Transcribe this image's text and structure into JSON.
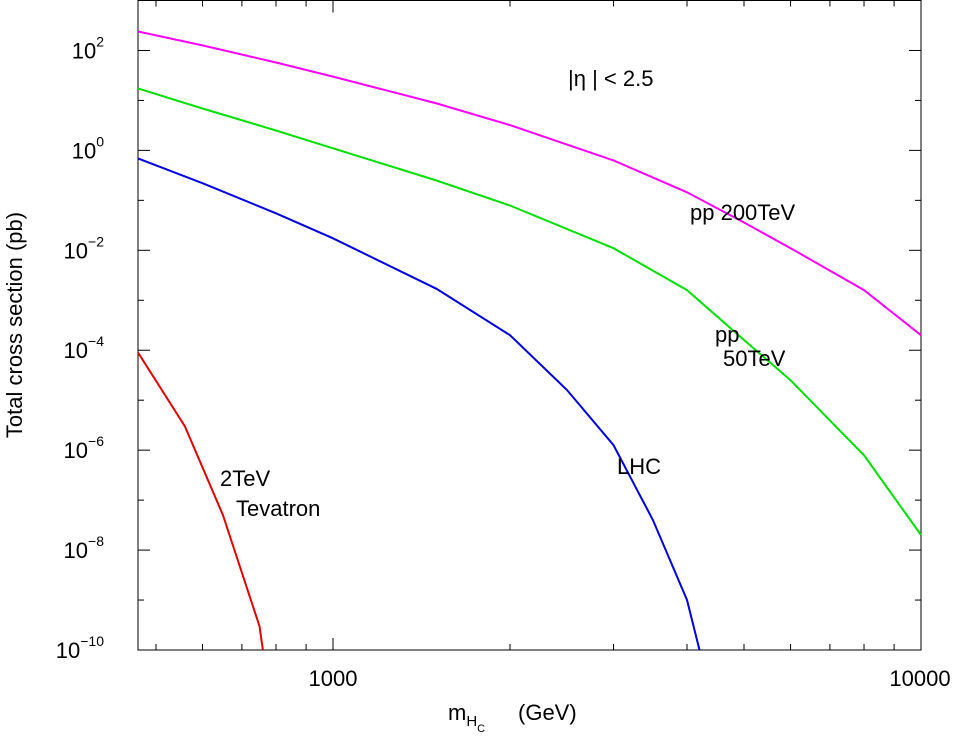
{
  "chart_data": {
    "type": "line",
    "x_label": {
      "text": "m",
      "sub": "H",
      "subsub": "C",
      "unit": "(GeV)"
    },
    "y_label": "Total cross section   (pb)",
    "xlog": true,
    "ylog": true,
    "xlim": [
      466,
      10000
    ],
    "ylim": [
      1e-10,
      1000
    ],
    "xticks": [
      1000,
      10000
    ],
    "xminorticks": [
      500,
      600,
      700,
      800,
      900,
      2000,
      3000,
      4000,
      5000,
      6000,
      7000,
      8000,
      9000
    ],
    "yticks": [
      {
        "value": 1e-10,
        "label": "10",
        "exponent": "−10"
      },
      {
        "value": 1e-08,
        "label": "10",
        "exponent": "−8"
      },
      {
        "value": 1e-06,
        "label": "10",
        "exponent": "−6"
      },
      {
        "value": 0.0001,
        "label": "10",
        "exponent": "−4"
      },
      {
        "value": 0.01,
        "label": "10",
        "exponent": "−2"
      },
      {
        "value": 1,
        "label": "10",
        "exponent": "0"
      },
      {
        "value": 100,
        "label": "10",
        "exponent": "2"
      }
    ],
    "yminorticks": [
      1e-09,
      1e-07,
      1e-05,
      0.001,
      0.1,
      10
    ],
    "annotations": [
      "|η | < 2.5",
      "pp 200TeV",
      "pp",
      "50TeV",
      "LHC",
      "2TeV",
      "Tevatron"
    ],
    "series": [
      {
        "color": "#ff00ff",
        "x": [
          466,
          600,
          800,
          1000,
          1500,
          2000,
          3000,
          4000,
          5000,
          6000,
          8000,
          10000
        ],
        "values": [
          240,
          126,
          57.5,
          30,
          8.7,
          3.2,
          0.63,
          0.145,
          0.036,
          0.011,
          0.0016,
          0.0002
        ]
      },
      {
        "color": "#00e000",
        "x": [
          466,
          600,
          800,
          1000,
          1500,
          2000,
          3000,
          4000,
          5000,
          6000,
          8000,
          10000
        ],
        "values": [
          17.4,
          6.9,
          2.5,
          1.1,
          0.25,
          0.079,
          0.011,
          0.0016,
          0.00016,
          2.5e-05,
          7.9e-07,
          2e-08
        ]
      },
      {
        "color": "#0000e0",
        "x": [
          466,
          600,
          800,
          1000,
          1500,
          2000,
          2500,
          3000,
          3500,
          4000,
          4200
        ],
        "values": [
          0.69,
          0.22,
          0.055,
          0.0174,
          0.0017,
          0.0002,
          1.6e-05,
          1.26e-06,
          4e-08,
          1e-09,
          1e-10
        ]
      },
      {
        "color": "#e00000",
        "x": [
          466,
          560,
          650,
          750,
          760
        ],
        "values": [
          9e-05,
          3e-06,
          5e-08,
          3e-10,
          1e-10
        ]
      }
    ]
  }
}
